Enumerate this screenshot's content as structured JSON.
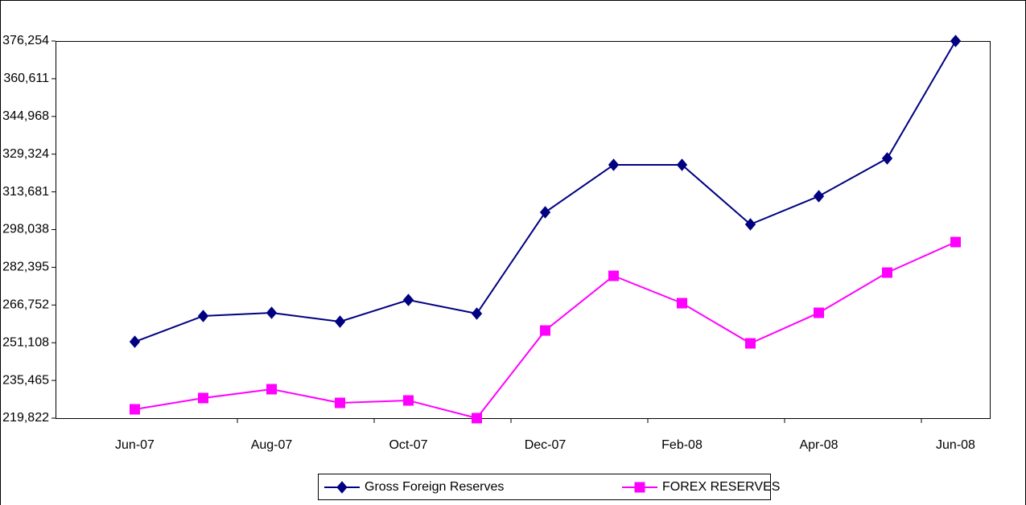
{
  "chart_data": {
    "type": "line",
    "categories": [
      "Jun-07",
      null,
      "Aug-07",
      null,
      "Oct-07",
      null,
      "Dec-07",
      null,
      "Feb-08",
      null,
      "Apr-08",
      null,
      "Jun-08"
    ],
    "series": [
      {
        "name": "Gross Foreign Reserves",
        "color": "#000080",
        "marker": "diamond",
        "values": [
          251508,
          262182,
          263516,
          259847,
          268852,
          263182,
          305208,
          324887,
          324887,
          300205,
          311879,
          327555,
          376254
        ]
      },
      {
        "name": "FOREX RESERVES",
        "color": "#ff00ff",
        "marker": "square",
        "values": [
          223491,
          228161,
          231829,
          226159,
          227160,
          219822,
          256178,
          278859,
          267518,
          250841,
          263516,
          280193,
          292867
        ]
      }
    ],
    "ylim": [
      219822,
      376254
    ],
    "yticks": [
      {
        "value": 219822,
        "label": "219,822"
      },
      {
        "value": 235465,
        "label": "235,465"
      },
      {
        "value": 251108,
        "label": "251,108"
      },
      {
        "value": 266752,
        "label": "266,752"
      },
      {
        "value": 282395,
        "label": "282,395"
      },
      {
        "value": 298038,
        "label": "298,038"
      },
      {
        "value": 313681,
        "label": "313,681"
      },
      {
        "value": 329324,
        "label": "329,324"
      },
      {
        "value": 344968,
        "label": "344,968"
      },
      {
        "value": 360611,
        "label": "360,611"
      },
      {
        "value": 376254,
        "label": "376,254"
      }
    ],
    "grid": false,
    "legend": "bottom"
  }
}
